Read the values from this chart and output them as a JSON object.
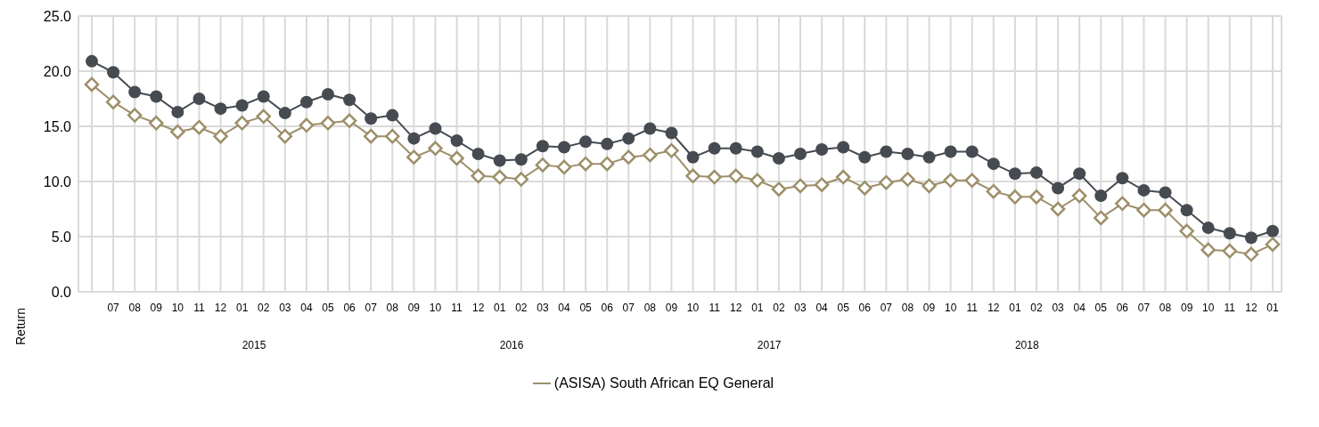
{
  "chart_data": {
    "type": "line",
    "ylabel": "Return",
    "categories": [
      null,
      "07",
      "08",
      "09",
      "10",
      "11",
      "12",
      "01",
      "02",
      "03",
      "04",
      "05",
      "06",
      "07",
      "08",
      "09",
      "10",
      "11",
      "12",
      "01",
      "02",
      "03",
      "04",
      "05",
      "06",
      "07",
      "08",
      "09",
      "10",
      "11",
      "12",
      "01",
      "02",
      "03",
      "04",
      "05",
      "06",
      "07",
      "08",
      "09",
      "10",
      "11",
      "12",
      "01",
      "02",
      "03",
      "04",
      "05",
      "06",
      "07",
      "08",
      "09",
      "10",
      "11",
      "12",
      "01"
    ],
    "series": [
      {
        "color": "#464b52",
        "marker": "circle",
        "values": [
          20.9,
          19.9,
          18.1,
          17.7,
          16.3,
          17.5,
          16.6,
          16.9,
          17.7,
          16.2,
          17.2,
          17.9,
          17.4,
          15.7,
          16.0,
          13.9,
          14.8,
          13.7,
          12.5,
          11.9,
          12.0,
          13.2,
          13.1,
          13.6,
          13.4,
          13.9,
          14.8,
          14.4,
          12.2,
          13.0,
          13.0,
          12.7,
          12.1,
          12.5,
          12.9,
          13.1,
          12.2,
          12.7,
          12.5,
          12.2,
          12.7,
          12.7,
          11.6,
          10.7,
          10.8,
          9.4,
          10.7,
          8.7,
          10.3,
          9.2,
          9.0,
          7.4,
          5.8,
          5.3,
          4.9,
          5.5
        ]
      },
      {
        "name": "(ASISA) South African EQ General",
        "color": "#9d8f6a",
        "marker": "diamond",
        "values": [
          18.8,
          17.2,
          16.0,
          15.3,
          14.5,
          14.9,
          14.1,
          15.3,
          15.9,
          14.1,
          15.1,
          15.3,
          15.5,
          14.1,
          14.1,
          12.2,
          13.0,
          12.1,
          10.5,
          10.4,
          10.2,
          11.5,
          11.3,
          11.6,
          11.6,
          12.2,
          12.4,
          12.8,
          10.5,
          10.4,
          10.5,
          10.1,
          9.3,
          9.6,
          9.7,
          10.4,
          9.4,
          9.9,
          10.2,
          9.6,
          10.1,
          10.1,
          9.1,
          8.6,
          8.6,
          7.5,
          8.7,
          6.7,
          8.0,
          7.4,
          7.4,
          5.5,
          3.8,
          3.7,
          3.4,
          4.3
        ]
      }
    ],
    "ylim": [
      0,
      25
    ],
    "yticks": [
      {
        "value": 0,
        "label": "0.0"
      },
      {
        "value": 5,
        "label": "5.0"
      },
      {
        "value": 10,
        "label": "10.0"
      },
      {
        "value": 15,
        "label": "15.0"
      },
      {
        "value": 20,
        "label": "20.0"
      },
      {
        "value": 25,
        "label": "25.0"
      }
    ],
    "annotations": [
      "2015",
      "2016",
      "2017",
      "2018"
    ],
    "grid": true,
    "legend": "bottom",
    "line_style": "solid"
  }
}
